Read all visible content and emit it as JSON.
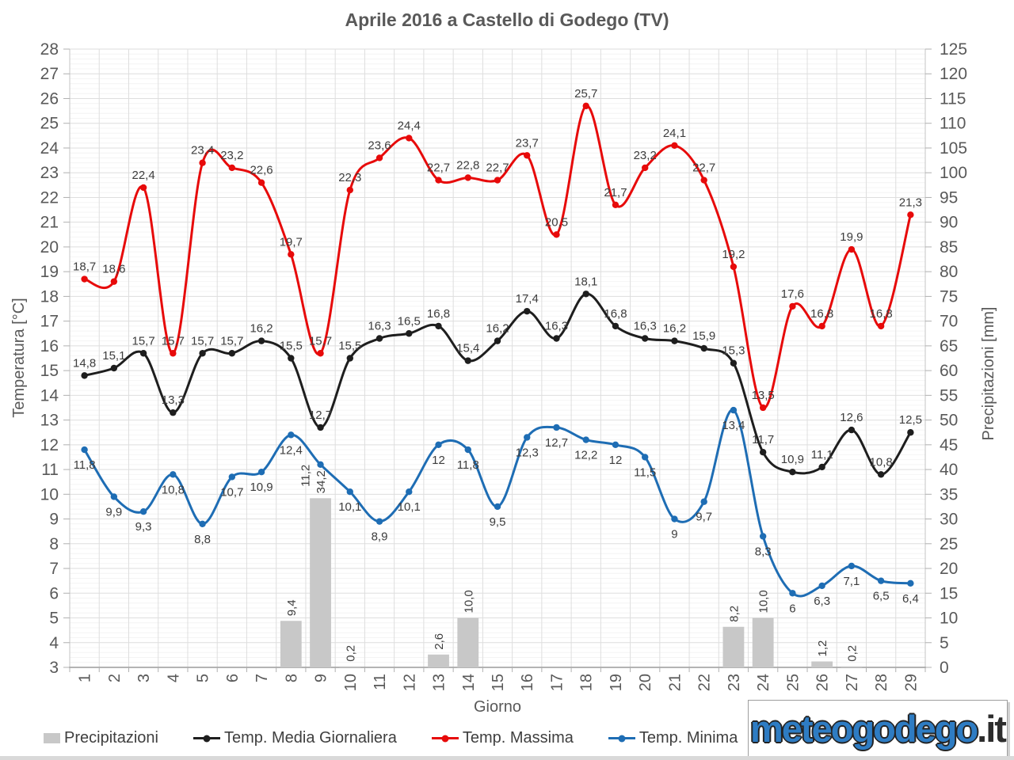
{
  "title": "Aprile 2016 a Castello di Godego (TV)",
  "logo": {
    "main": "meteogodego",
    "tld": ".it"
  },
  "chart_data": {
    "type": "line+bar",
    "categories": [
      1,
      2,
      3,
      4,
      5,
      6,
      7,
      8,
      9,
      10,
      11,
      12,
      13,
      14,
      15,
      16,
      17,
      18,
      19,
      20,
      21,
      22,
      23,
      24,
      25,
      26,
      27,
      28,
      29
    ],
    "x_axis": {
      "label": "Giorno"
    },
    "y_left": {
      "label": "Temperatura [°C]",
      "min": 3,
      "max": 28,
      "step": 1
    },
    "y_right": {
      "label": "Precipitazioni [mm]",
      "min": 0,
      "max": 125,
      "step": 5
    },
    "grid": {
      "major": true,
      "minor_step_c": 0.2
    },
    "legend_position": "bottom",
    "series": [
      {
        "name": "Precipitazioni",
        "type": "bar",
        "axis": "right",
        "color": "#c8c8c8",
        "labels_rotated": true,
        "values": [
          null,
          null,
          null,
          null,
          null,
          null,
          null,
          9.4,
          34.2,
          0.2,
          null,
          null,
          2.6,
          10.0,
          null,
          null,
          null,
          null,
          null,
          null,
          null,
          null,
          8.2,
          10.0,
          null,
          1.2,
          0.2,
          null,
          null
        ]
      },
      {
        "name": "Temp. Media Giornaliera",
        "type": "line",
        "axis": "left",
        "color": "#1e1e1e",
        "values": [
          14.8,
          15.1,
          15.7,
          13.3,
          15.7,
          15.7,
          16.2,
          15.5,
          12.7,
          15.5,
          16.3,
          16.5,
          16.8,
          15.4,
          16.2,
          17.4,
          16.3,
          18.1,
          16.8,
          16.3,
          16.2,
          15.9,
          15.3,
          11.7,
          10.9,
          11.1,
          12.6,
          10.8,
          12.5
        ]
      },
      {
        "name": "Temp. Massima",
        "type": "line",
        "axis": "left",
        "color": "#e70a0a",
        "values": [
          18.7,
          18.6,
          22.4,
          15.7,
          23.4,
          23.2,
          22.6,
          19.7,
          15.7,
          22.3,
          23.6,
          24.4,
          22.7,
          22.8,
          22.7,
          23.7,
          20.5,
          25.7,
          21.7,
          23.2,
          24.1,
          22.7,
          19.2,
          13.5,
          17.6,
          16.8,
          19.9,
          16.8,
          21.3
        ]
      },
      {
        "name": "Temp. Minima",
        "type": "line",
        "axis": "left",
        "color": "#1e6db4",
        "labels_below": true,
        "label_rotated_days": [
          9
        ],
        "values": [
          11.8,
          9.9,
          9.3,
          10.8,
          8.8,
          10.7,
          10.9,
          12.4,
          11.2,
          10.1,
          8.9,
          10.1,
          12,
          11.8,
          9.5,
          12.3,
          12.7,
          12.2,
          12,
          11.5,
          9,
          9.7,
          13.4,
          8.3,
          6,
          6.3,
          7.1,
          6.5,
          6.4
        ]
      }
    ]
  }
}
